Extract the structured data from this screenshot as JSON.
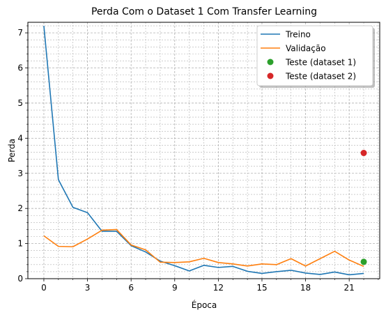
{
  "chart_data": {
    "type": "line",
    "title": "Perda Com o Dataset 1 Com Transfer Learning",
    "xlabel": "Época",
    "ylabel": "Perda",
    "xlim": [
      -1.1,
      23.1
    ],
    "ylim": [
      0,
      7.3
    ],
    "xticks": [
      0,
      3,
      6,
      9,
      12,
      15,
      18,
      21
    ],
    "yticks": [
      0,
      1,
      2,
      3,
      4,
      5,
      6,
      7
    ],
    "grid": true,
    "legend_position": "top-right",
    "series": [
      {
        "name": "Treino",
        "kind": "line",
        "color": "#1f77b4",
        "x": [
          0,
          1,
          2,
          3,
          4,
          5,
          6,
          7,
          8,
          9,
          10,
          11,
          12,
          13,
          14,
          15,
          16,
          17,
          18,
          19,
          20,
          21,
          22
        ],
        "values": [
          7.2,
          2.82,
          2.03,
          1.88,
          1.35,
          1.35,
          0.94,
          0.76,
          0.5,
          0.37,
          0.22,
          0.38,
          0.32,
          0.35,
          0.21,
          0.15,
          0.2,
          0.24,
          0.16,
          0.12,
          0.19,
          0.11,
          0.15
        ]
      },
      {
        "name": "Validação",
        "kind": "line",
        "color": "#ff7f0e",
        "x": [
          0,
          1,
          2,
          3,
          4,
          5,
          6,
          7,
          8,
          9,
          10,
          11,
          12,
          13,
          14,
          15,
          16,
          17,
          18,
          19,
          20,
          21,
          22
        ],
        "values": [
          1.22,
          0.92,
          0.91,
          1.13,
          1.38,
          1.4,
          0.96,
          0.82,
          0.47,
          0.46,
          0.48,
          0.58,
          0.46,
          0.42,
          0.36,
          0.42,
          0.4,
          0.57,
          0.36,
          0.57,
          0.78,
          0.53,
          0.35
        ]
      },
      {
        "name": "Teste (dataset 1)",
        "kind": "point",
        "color": "#2ca02c",
        "x": [
          22
        ],
        "values": [
          0.48
        ]
      },
      {
        "name": "Teste (dataset 2)",
        "kind": "point",
        "color": "#d62728",
        "x": [
          22
        ],
        "values": [
          3.58
        ]
      }
    ]
  }
}
